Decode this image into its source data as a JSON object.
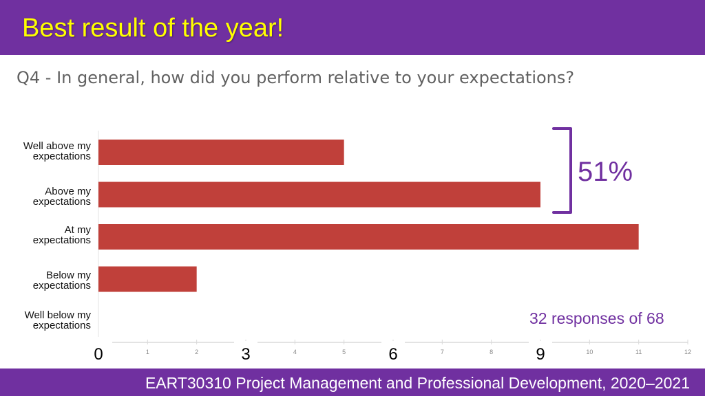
{
  "header": {
    "title": "Best result of the year!"
  },
  "question": "Q4 - In general, how did you perform relative to your expectations?",
  "chart_data": {
    "type": "bar",
    "orientation": "horizontal",
    "categories": [
      [
        "Well above my",
        "expectations"
      ],
      [
        "Above my",
        "expectations"
      ],
      [
        "At my",
        "expectations"
      ],
      [
        "Below my",
        "expectations"
      ],
      [
        "Well below my",
        "expectations"
      ]
    ],
    "values": [
      5,
      9,
      11,
      2,
      0
    ],
    "xlim": [
      0,
      12
    ],
    "ticks": [
      "0",
      "1",
      "2",
      "3",
      "4",
      "5",
      "6",
      "7",
      "8",
      "9",
      "10",
      "11",
      "12"
    ],
    "overlay_ticks": [
      {
        "value": 0,
        "label": "0"
      },
      {
        "value": 3,
        "label": "3"
      },
      {
        "value": 6,
        "label": "6"
      },
      {
        "value": 9,
        "label": "9"
      }
    ],
    "bar_color": "#c0403a",
    "grid": false
  },
  "annotations": {
    "bracket_percent": "51%",
    "responses": "32 responses of 68",
    "accent_color": "#7030a0"
  },
  "footer": {
    "text": "EART30310 Project Management and Professional Development, 2020–2021"
  }
}
